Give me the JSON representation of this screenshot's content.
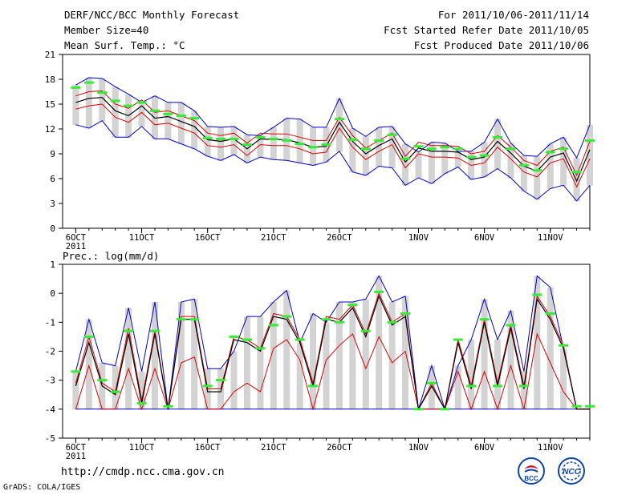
{
  "header": {
    "title": "DERF/NCC/BCC Monthly Forecast",
    "member_size": "Member Size=40",
    "variable": "Mean Surf. Temp.: °C",
    "period": "For 2011/10/06-2011/11/14",
    "started": "Fcst Started Refer Date 2011/10/05",
    "produced": "Fcst Produced Date 2011/10/06"
  },
  "footer": {
    "url": "http://cmdp.ncc.cma.gov.cn",
    "grads": "GrADS: COLA/IGES"
  },
  "logos": {
    "bcc": "BCC",
    "ncc": "NCC"
  },
  "colors": {
    "mean": "#000000",
    "spread": "#dd0000",
    "extreme": "#0000cc",
    "obs": "#33ee33",
    "box": "#d3d3d3"
  },
  "chart_data": [
    {
      "type": "line",
      "title": "Mean Surf. Temp.: °C",
      "ylim": [
        0,
        21
      ],
      "yticks": [
        0,
        3,
        6,
        9,
        12,
        15,
        18,
        21
      ],
      "xtick_labels": [
        "6OCT",
        "11OCT",
        "16OCT",
        "21OCT",
        "26OCT",
        "1NOV",
        "6NOV",
        "11NOV"
      ],
      "xtick_days": [
        0,
        5,
        10,
        15,
        20,
        26,
        31,
        36
      ],
      "year_label": "2011",
      "x_day_range": [
        -1,
        39
      ],
      "series": [
        {
          "name": "max",
          "values": [
            17.3,
            18.2,
            18.1,
            17.1,
            16.2,
            15.2,
            16.0,
            15.2,
            15.2,
            14.2,
            12.3,
            12.2,
            12.3,
            11.3,
            11.2,
            12.2,
            13.3,
            13.2,
            12.2,
            12.2,
            15.7,
            12.1,
            11.1,
            12.2,
            12.3,
            10.2,
            9.2,
            10.4,
            10.3,
            9.3,
            9.3,
            10.4,
            13.2,
            10.3,
            8.8,
            8.7,
            10.2,
            11.0,
            8.5,
            12.5
          ]
        },
        {
          "name": "upper",
          "values": [
            16.0,
            16.5,
            16.6,
            15.0,
            14.5,
            15.5,
            14.0,
            14.2,
            13.6,
            13.0,
            11.5,
            11.2,
            11.5,
            10.3,
            11.5,
            11.4,
            11.4,
            11.0,
            10.6,
            10.6,
            13.4,
            11.2,
            9.7,
            10.6,
            11.5,
            8.7,
            10.4,
            10.0,
            10.0,
            9.9,
            9.0,
            9.3,
            11.2,
            9.8,
            8.2,
            7.6,
            9.3,
            9.8,
            6.4,
            10.5
          ]
        },
        {
          "name": "mean",
          "values": [
            15.2,
            15.7,
            15.8,
            14.2,
            13.6,
            14.8,
            13.3,
            13.5,
            12.9,
            12.3,
            10.7,
            10.5,
            10.8,
            9.6,
            10.8,
            10.7,
            10.7,
            10.3,
            9.8,
            9.9,
            12.8,
            10.5,
            9.0,
            10.0,
            10.8,
            8.0,
            9.7,
            9.3,
            9.3,
            9.2,
            8.3,
            8.6,
            10.5,
            9.1,
            7.5,
            6.9,
            8.6,
            9.1,
            5.7,
            9.5
          ]
        },
        {
          "name": "lower",
          "values": [
            14.4,
            14.8,
            15.0,
            13.4,
            12.8,
            14.0,
            12.5,
            12.7,
            12.1,
            11.5,
            10.0,
            9.8,
            10.1,
            8.8,
            10.1,
            10.0,
            10.0,
            9.6,
            9.0,
            9.2,
            12.1,
            9.8,
            8.3,
            9.3,
            10.1,
            7.3,
            9.0,
            8.6,
            8.6,
            8.5,
            7.6,
            7.9,
            9.8,
            8.4,
            6.8,
            6.2,
            7.9,
            8.4,
            5.0,
            8.4
          ]
        },
        {
          "name": "min",
          "values": [
            12.5,
            12.1,
            13.0,
            11.0,
            11.0,
            12.3,
            10.8,
            10.8,
            10.2,
            9.6,
            8.7,
            8.2,
            8.9,
            7.9,
            8.6,
            8.3,
            8.2,
            7.9,
            7.6,
            8.0,
            9.3,
            6.8,
            6.4,
            7.5,
            7.3,
            5.2,
            6.1,
            5.4,
            6.6,
            7.4,
            5.9,
            6.2,
            7.2,
            6.1,
            4.5,
            3.5,
            4.8,
            5.2,
            3.3,
            5.2
          ]
        },
        {
          "name": "observed",
          "values": [
            17.0,
            17.6,
            16.4,
            15.4,
            14.8,
            15.2,
            14.2,
            13.8,
            13.6,
            13.3,
            10.9,
            10.8,
            10.8,
            10.1,
            11.0,
            10.8,
            10.6,
            10.2,
            9.8,
            10.1,
            13.2,
            10.7,
            9.6,
            10.6,
            11.3,
            8.4,
            9.9,
            9.6,
            9.8,
            9.6,
            8.6,
            8.8,
            11.0,
            9.6,
            7.6,
            7.0,
            9.2,
            9.6,
            6.8,
            10.6
          ]
        }
      ]
    },
    {
      "type": "line",
      "title": "Prec.: log(mm/d)",
      "ylim": [
        -5,
        1
      ],
      "yticks": [
        -5,
        -4,
        -3,
        -2,
        -1,
        0,
        1
      ],
      "xtick_labels": [
        "6OCT",
        "11OCT",
        "16OCT",
        "21OCT",
        "26OCT",
        "1NOV",
        "6NOV",
        "11NOV"
      ],
      "xtick_days": [
        0,
        5,
        10,
        15,
        20,
        26,
        31,
        36
      ],
      "year_label": "2011",
      "x_day_range": [
        -1,
        39
      ],
      "series": [
        {
          "name": "max",
          "values": [
            -2.7,
            -0.9,
            -2.4,
            -2.5,
            -0.5,
            -2.7,
            -0.3,
            -4.0,
            -0.3,
            -0.2,
            -2.6,
            -2.6,
            -2.0,
            -0.8,
            -0.8,
            -0.3,
            0.1,
            -1.7,
            -0.7,
            -1.0,
            -0.3,
            -0.3,
            -0.2,
            0.6,
            -0.3,
            -0.1,
            -4.0,
            -2.5,
            -4.0,
            -2.5,
            -1.6,
            -0.2,
            -1.6,
            -0.6,
            -2.7,
            0.6,
            0.2,
            -1.9,
            -4.0,
            -4.0
          ]
        },
        {
          "name": "upper",
          "values": [
            -3.1,
            -1.5,
            -3.1,
            -3.4,
            -1.2,
            -3.7,
            -1.3,
            -4.0,
            -0.8,
            -0.8,
            -3.3,
            -3.3,
            -1.5,
            -1.6,
            -1.9,
            -0.7,
            -0.8,
            -1.6,
            -3.1,
            -0.8,
            -0.9,
            -0.4,
            -1.4,
            0.0,
            -1.0,
            -0.7,
            -4.0,
            -3.1,
            -4.0,
            -1.6,
            -3.2,
            -0.9,
            -3.1,
            -1.1,
            -3.2,
            -0.1,
            -0.8,
            -1.8,
            -4.0,
            -4.0
          ]
        },
        {
          "name": "mean",
          "values": [
            -3.2,
            -1.7,
            -3.2,
            -3.5,
            -1.4,
            -3.8,
            -1.4,
            -4.0,
            -0.9,
            -0.9,
            -3.4,
            -3.4,
            -1.6,
            -1.7,
            -2.0,
            -0.8,
            -0.9,
            -1.7,
            -3.2,
            -0.9,
            -1.0,
            -0.5,
            -1.5,
            -0.1,
            -1.1,
            -0.8,
            -4.0,
            -3.2,
            -4.0,
            -1.7,
            -3.3,
            -1.0,
            -3.2,
            -1.2,
            -3.3,
            -0.2,
            -0.9,
            -1.9,
            -4.0,
            -4.0
          ]
        },
        {
          "name": "lower",
          "values": [
            -4.0,
            -2.5,
            -4.0,
            -4.0,
            -2.6,
            -4.0,
            -2.6,
            -4.0,
            -2.4,
            -2.2,
            -4.0,
            -4.0,
            -3.4,
            -3.1,
            -3.4,
            -1.9,
            -1.6,
            -2.3,
            -4.0,
            -2.3,
            -1.8,
            -1.4,
            -2.6,
            -1.5,
            -2.4,
            -2.0,
            -4.0,
            -4.0,
            -4.0,
            -2.7,
            -4.0,
            -2.7,
            -4.0,
            -2.5,
            -4.0,
            -1.4,
            -2.4,
            -3.4,
            -4.0,
            -4.0
          ]
        },
        {
          "name": "min",
          "values": [
            -4.0,
            -4.0,
            -4.0,
            -4.0,
            -4.0,
            -4.0,
            -4.0,
            -4.0,
            -4.0,
            -4.0,
            -4.0,
            -4.0,
            -4.0,
            -4.0,
            -4.0,
            -4.0,
            -4.0,
            -4.0,
            -4.0,
            -4.0,
            -4.0,
            -4.0,
            -4.0,
            -4.0,
            -4.0,
            -4.0,
            -4.0,
            -4.0,
            -4.0,
            -4.0,
            -4.0,
            -4.0,
            -4.0,
            -4.0,
            -4.0,
            -4.0,
            -4.0,
            -4.0,
            -4.0,
            -4.0
          ]
        },
        {
          "name": "observed",
          "values": [
            -2.7,
            -1.5,
            -3.0,
            -3.4,
            -1.3,
            -3.8,
            -1.3,
            -3.9,
            -0.9,
            -0.9,
            -3.2,
            -3.0,
            -1.5,
            -1.6,
            -1.9,
            -1.1,
            -0.8,
            -1.6,
            -3.2,
            -0.9,
            -1.0,
            -0.4,
            -1.3,
            0.05,
            -1.0,
            -0.7,
            -4.0,
            -3.1,
            -4.0,
            -1.6,
            -3.2,
            -0.9,
            -3.2,
            -1.1,
            -3.2,
            -0.05,
            -0.7,
            -1.8,
            -3.9,
            -3.9
          ]
        }
      ]
    }
  ]
}
